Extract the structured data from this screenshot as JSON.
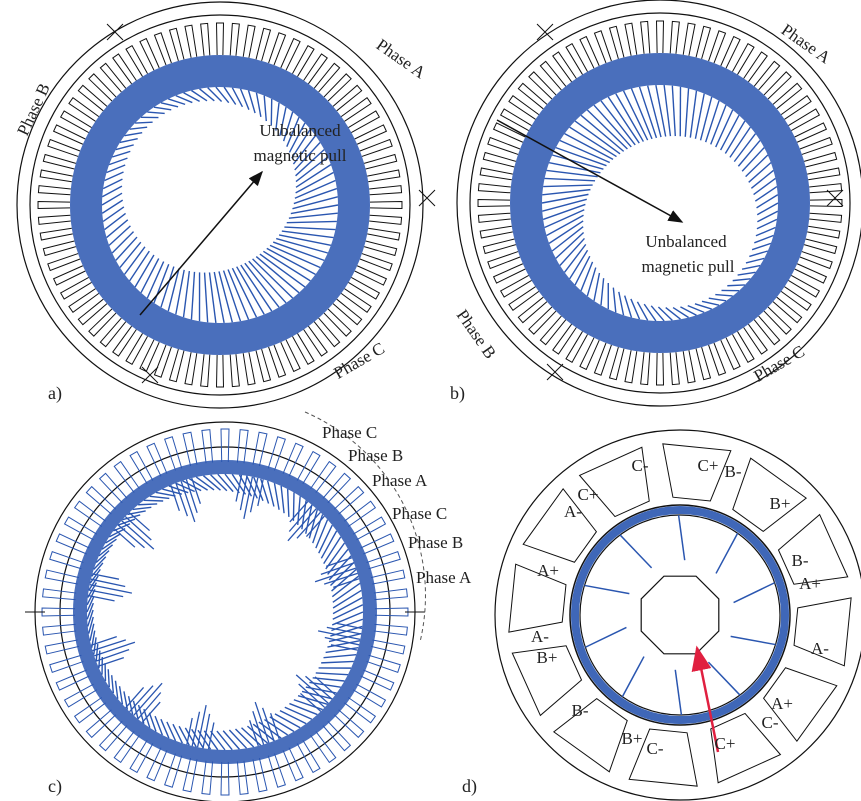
{
  "panels": [
    {
      "label": "a)",
      "phases": [
        "Phase A",
        "Phase B",
        "Phase C"
      ],
      "annotation": [
        "Unbalanced",
        "magnetic pull"
      ]
    },
    {
      "label": "b)",
      "phases": [
        "Phase A",
        "Phase B",
        "Phase C"
      ],
      "annotation": [
        "Unbalanced",
        "magnetic pull"
      ]
    },
    {
      "label": "c)",
      "phases": [
        "Phase C",
        "Phase B",
        "Phase A",
        "Phase C",
        "Phase B",
        "Phase A"
      ]
    },
    {
      "label": "d)",
      "slots": [
        "C-",
        "C+",
        "B-",
        "B+",
        "B-",
        "A+",
        "A-",
        "A+",
        "C-",
        "C+",
        "B+",
        "C-",
        "B-",
        "A-",
        "B+",
        "A+",
        "C+",
        "A-"
      ]
    }
  ]
}
